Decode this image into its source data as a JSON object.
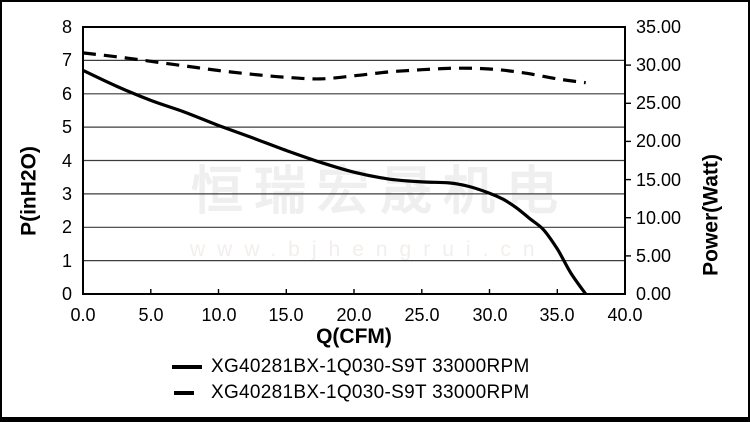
{
  "watermark": {
    "line1": "恒瑞宏晟机电",
    "line2": "www.bjhengrui.cn",
    "color_cn": "#efefef",
    "color_url": "#f2eeec"
  },
  "chart_data": {
    "type": "line",
    "title": "",
    "xlabel": "Q(CFM)",
    "ylabel_left": "P(inH2O)",
    "ylabel_right": "Power(Watt)",
    "xlim": [
      0,
      40
    ],
    "ylim_left": [
      0,
      8
    ],
    "ylim_right": [
      0,
      35
    ],
    "grid": "horizontal-only",
    "grid_values_left": [
      1,
      2,
      3,
      4,
      5,
      6,
      7
    ],
    "axis_color": "#000000",
    "grid_color": "#3d3d3d",
    "x_ticks": [
      {
        "v": 0,
        "label": "0.0"
      },
      {
        "v": 5,
        "label": "5.0"
      },
      {
        "v": 10,
        "label": "10.0"
      },
      {
        "v": 15,
        "label": "15.0"
      },
      {
        "v": 20,
        "label": "20.0"
      },
      {
        "v": 25,
        "label": "25.0"
      },
      {
        "v": 30,
        "label": "30.0"
      },
      {
        "v": 35,
        "label": "35.0"
      },
      {
        "v": 40,
        "label": "40.0"
      }
    ],
    "y_ticks_left": [
      {
        "v": 8,
        "label": "8"
      },
      {
        "v": 7,
        "label": "7"
      },
      {
        "v": 6,
        "label": "6"
      },
      {
        "v": 5,
        "label": "5"
      },
      {
        "v": 4,
        "label": "4"
      },
      {
        "v": 3,
        "label": "3"
      },
      {
        "v": 2,
        "label": "2"
      },
      {
        "v": 1,
        "label": "1"
      },
      {
        "v": 0,
        "label": "0"
      }
    ],
    "y_ticks_right": [
      {
        "v": 35,
        "label": "35.00"
      },
      {
        "v": 30,
        "label": "30.00"
      },
      {
        "v": 25,
        "label": "25.00"
      },
      {
        "v": 20,
        "label": "20.00"
      },
      {
        "v": 15,
        "label": "15.00"
      },
      {
        "v": 10,
        "label": "10.00"
      },
      {
        "v": 5,
        "label": "5.00"
      },
      {
        "v": 0,
        "label": "0.00"
      }
    ],
    "series": [
      {
        "name": "XG40281BX-1Q030-S9T 33000RPM",
        "style": "solid",
        "axis": "left",
        "color": "#000000",
        "points": [
          [
            0,
            6.7
          ],
          [
            2.5,
            6.22
          ],
          [
            5,
            5.8
          ],
          [
            7.5,
            5.45
          ],
          [
            10,
            5.05
          ],
          [
            12.5,
            4.68
          ],
          [
            15,
            4.3
          ],
          [
            17.5,
            3.95
          ],
          [
            20,
            3.65
          ],
          [
            22.5,
            3.45
          ],
          [
            25,
            3.36
          ],
          [
            27,
            3.33
          ],
          [
            28.5,
            3.22
          ],
          [
            30,
            3.02
          ],
          [
            31,
            2.84
          ],
          [
            32,
            2.58
          ],
          [
            33,
            2.25
          ],
          [
            34,
            1.92
          ],
          [
            35,
            1.35
          ],
          [
            36,
            0.63
          ],
          [
            37.1,
            0
          ]
        ]
      },
      {
        "name": "XG40281BX-1Q030-S9T 33000RPM",
        "style": "dashed",
        "axis": "right",
        "color": "#000000",
        "points": [
          [
            0,
            31.6
          ],
          [
            2.5,
            31.1
          ],
          [
            5,
            30.5
          ],
          [
            7.5,
            29.9
          ],
          [
            10,
            29.3
          ],
          [
            12.5,
            28.8
          ],
          [
            15,
            28.4
          ],
          [
            17.5,
            28.2
          ],
          [
            20,
            28.6
          ],
          [
            22.5,
            29.1
          ],
          [
            25,
            29.4
          ],
          [
            27.5,
            29.6
          ],
          [
            30,
            29.5
          ],
          [
            32.5,
            29.0
          ],
          [
            35,
            28.2
          ],
          [
            37.1,
            27.7
          ]
        ]
      }
    ],
    "legend": [
      {
        "label": "XG40281BX-1Q030-S9T 33000RPM",
        "style": "solid"
      },
      {
        "label": "XG40281BX-1Q030-S9T 33000RPM",
        "style": "dashed"
      }
    ]
  }
}
